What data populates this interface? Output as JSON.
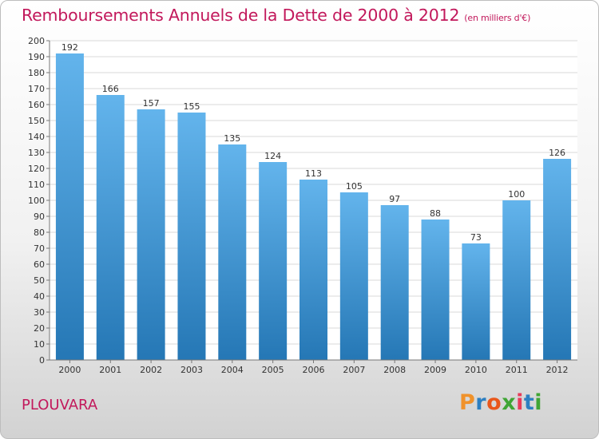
{
  "title": "Remboursements Annuels de la Dette de 2000 à 2012",
  "subtitle": "(en milliers d'€)",
  "commune": "PLOUVARA",
  "logo": {
    "text": "Proxiti",
    "colors": [
      "#f0922b",
      "#2d7fc1",
      "#e9571b",
      "#3fa534",
      "#e83b59",
      "#2d7fc1",
      "#3fa534"
    ]
  },
  "colors": {
    "title": "#c2185b",
    "bar_top": "#63b4ec",
    "bar_bottom": "#2577b5",
    "grid": "#d9d9d9"
  },
  "chart_data": {
    "type": "bar",
    "categories": [
      "2000",
      "2001",
      "2002",
      "2003",
      "2004",
      "2005",
      "2006",
      "2007",
      "2008",
      "2009",
      "2010",
      "2011",
      "2012"
    ],
    "values": [
      192,
      166,
      157,
      155,
      135,
      124,
      113,
      105,
      97,
      88,
      73,
      100,
      126
    ],
    "ylim": [
      0,
      200
    ],
    "ytick_step": 10,
    "grid": true
  }
}
